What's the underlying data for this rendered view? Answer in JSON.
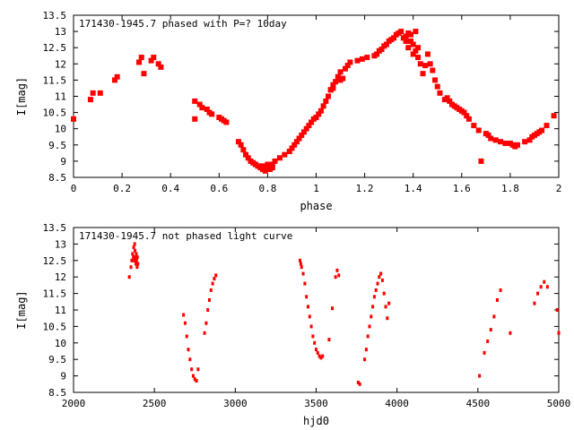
{
  "chart_data": [
    {
      "type": "scatter",
      "title": "171430-1945.7 phased with P=? 10day",
      "xlabel": "phase",
      "ylabel": "I[mag]",
      "xlim": [
        0,
        2
      ],
      "ylim": [
        13.5,
        8.5
      ],
      "y_inverted": true,
      "xticks": [
        0,
        0.2,
        0.4,
        0.6,
        0.8,
        1,
        1.2,
        1.4,
        1.6,
        1.8,
        2
      ],
      "xtick_labels": [
        "0",
        "0.2",
        "0.4",
        "0.6",
        "0.8",
        "1",
        "1.2",
        "1.4",
        "1.6",
        "1.8",
        "2"
      ],
      "yticks": [
        8.5,
        9,
        9.5,
        10,
        10.5,
        11,
        11.5,
        12,
        12.5,
        13,
        13.5
      ],
      "ytick_labels": [
        "8.5",
        "9",
        "9.5",
        "10",
        "10.5",
        "11",
        "11.5",
        "12",
        "12.5",
        "13",
        "13.5"
      ],
      "grid": false,
      "marker_color": "#ff0000",
      "series": [
        {
          "x": [
            0.0,
            0.07,
            0.08,
            0.11,
            0.17,
            0.18,
            0.27,
            0.28,
            0.29,
            0.32,
            0.33,
            0.35,
            0.36,
            0.5,
            0.5,
            0.52,
            0.53,
            0.55,
            0.56,
            0.57,
            0.6,
            0.61,
            0.62,
            0.63,
            0.68,
            0.69,
            0.7,
            0.71,
            0.72,
            0.73,
            0.74,
            0.75,
            0.76,
            0.77,
            0.78,
            0.78,
            0.79,
            0.79,
            0.8,
            0.8,
            0.81,
            0.81,
            0.82,
            0.82,
            0.83,
            0.85,
            0.87,
            0.89,
            0.9,
            0.91,
            0.92,
            0.93,
            0.94,
            0.95,
            0.96,
            0.97,
            0.98,
            0.99,
            1.0,
            1.01,
            1.02,
            1.03,
            1.04,
            1.05,
            1.06,
            1.07,
            1.08,
            1.09,
            1.1,
            1.12,
            1.13,
            1.14,
            1.17,
            1.19,
            1.21,
            1.24,
            1.25,
            1.26,
            1.27,
            1.28,
            1.29,
            1.3,
            1.31,
            1.32,
            1.33,
            1.34,
            1.35,
            1.36,
            1.37,
            1.37,
            1.38,
            1.38,
            1.39,
            1.39,
            1.4,
            1.4,
            1.41,
            1.41,
            1.42,
            1.42,
            1.43,
            1.44,
            1.45,
            1.46,
            1.47,
            1.48,
            1.49,
            1.5,
            1.51,
            1.53,
            1.54,
            1.55,
            1.56,
            1.57,
            1.58,
            1.59,
            1.6,
            1.61,
            1.62,
            1.63,
            1.65,
            1.67,
            1.68,
            1.7,
            1.71,
            1.72,
            1.74,
            1.76,
            1.78,
            1.8,
            1.81,
            1.82,
            1.83,
            1.86,
            1.88,
            1.89,
            1.9,
            1.91,
            1.92,
            1.93,
            1.95,
            1.98,
            1.06,
            1.07,
            1.1,
            1.11
          ],
          "y": [
            10.3,
            10.9,
            11.1,
            11.1,
            11.5,
            11.6,
            12.05,
            12.2,
            11.7,
            12.1,
            12.2,
            12.0,
            11.9,
            10.85,
            10.3,
            10.75,
            10.65,
            10.6,
            10.5,
            10.45,
            10.35,
            10.3,
            10.25,
            10.2,
            9.6,
            9.5,
            9.35,
            9.2,
            9.1,
            9.0,
            8.95,
            8.9,
            8.85,
            8.8,
            8.75,
            8.85,
            8.8,
            8.7,
            8.8,
            8.9,
            8.85,
            8.75,
            8.8,
            8.9,
            9.0,
            9.1,
            9.2,
            9.3,
            9.4,
            9.5,
            9.6,
            9.7,
            9.8,
            9.9,
            10.0,
            10.1,
            10.2,
            10.3,
            10.35,
            10.45,
            10.55,
            10.7,
            10.85,
            11.0,
            11.2,
            11.35,
            11.45,
            11.6,
            11.75,
            11.85,
            11.95,
            12.05,
            12.1,
            12.15,
            12.2,
            12.25,
            12.3,
            12.4,
            12.45,
            12.55,
            12.6,
            12.7,
            12.75,
            12.8,
            12.9,
            12.95,
            13.0,
            12.8,
            12.7,
            12.85,
            12.5,
            12.95,
            12.7,
            12.9,
            12.6,
            12.3,
            12.4,
            13.0,
            12.5,
            12.2,
            12.0,
            11.7,
            11.95,
            12.3,
            12.0,
            11.8,
            11.5,
            11.3,
            11.1,
            10.9,
            10.95,
            10.85,
            10.75,
            10.7,
            10.65,
            10.6,
            10.55,
            10.5,
            10.4,
            10.3,
            10.1,
            9.95,
            9.0,
            9.85,
            9.8,
            9.7,
            9.65,
            9.6,
            9.55,
            9.55,
            9.5,
            9.45,
            9.5,
            9.6,
            9.65,
            9.75,
            9.8,
            9.85,
            9.9,
            9.95,
            10.1,
            10.4,
            11.2,
            11.25,
            11.5,
            11.55
          ]
        }
      ]
    },
    {
      "type": "scatter",
      "title": "171430-1945.7 not phased light curve",
      "xlabel": "hjd0",
      "ylabel": "I[mag]",
      "xlim": [
        2000,
        5000
      ],
      "ylim": [
        13.5,
        8.5
      ],
      "y_inverted": true,
      "xticks": [
        2000,
        2500,
        3000,
        3500,
        4000,
        4500,
        5000
      ],
      "xtick_labels": [
        "2000",
        "2500",
        "3000",
        "3500",
        "4000",
        "4500",
        "5000"
      ],
      "yticks": [
        8.5,
        9,
        9.5,
        10,
        10.5,
        11,
        11.5,
        12,
        12.5,
        13,
        13.5
      ],
      "ytick_labels": [
        "8.5",
        "9",
        "9.5",
        "10",
        "10.5",
        "11",
        "11.5",
        "12",
        "12.5",
        "13",
        "13.5"
      ],
      "grid": false,
      "marker_color": "#ff0000",
      "series": [
        {
          "x": [
            2345,
            2355,
            2360,
            2365,
            2370,
            2372,
            2375,
            2378,
            2380,
            2383,
            2385,
            2388,
            2390,
            2393,
            2395,
            2398,
            2680,
            2690,
            2700,
            2710,
            2720,
            2730,
            2740,
            2750,
            2760,
            2770,
            2810,
            2820,
            2830,
            2840,
            2850,
            2860,
            2870,
            2880,
            3400,
            3405,
            3410,
            3420,
            3430,
            3440,
            3450,
            3460,
            3470,
            3480,
            3490,
            3500,
            3510,
            3520,
            3530,
            3540,
            3580,
            3600,
            3620,
            3630,
            3640,
            3760,
            3770,
            3800,
            3810,
            3820,
            3830,
            3840,
            3850,
            3860,
            3870,
            3880,
            3890,
            3900,
            3910,
            3920,
            3930,
            3940,
            3950,
            4510,
            4540,
            4560,
            4580,
            4600,
            4620,
            4640,
            4700,
            4850,
            4870,
            4890,
            4910,
            4930,
            4990,
            5000
          ],
          "y": [
            12.0,
            12.3,
            12.5,
            12.7,
            12.6,
            12.9,
            12.5,
            13.0,
            12.8,
            12.6,
            12.4,
            12.7,
            12.5,
            12.3,
            12.6,
            12.4,
            10.85,
            10.6,
            10.2,
            9.8,
            9.5,
            9.2,
            9.0,
            8.9,
            8.85,
            9.2,
            10.3,
            10.6,
            11.0,
            11.3,
            11.6,
            11.8,
            11.95,
            12.05,
            12.5,
            12.4,
            12.3,
            12.1,
            11.8,
            11.4,
            11.1,
            10.8,
            10.5,
            10.2,
            10.0,
            9.8,
            9.7,
            9.6,
            9.55,
            9.6,
            10.1,
            11.05,
            12.0,
            12.2,
            12.05,
            8.8,
            8.75,
            9.5,
            9.8,
            10.2,
            10.5,
            10.8,
            11.1,
            11.4,
            11.6,
            11.8,
            12.0,
            12.1,
            11.9,
            11.5,
            11.1,
            10.75,
            11.2,
            9.0,
            9.7,
            10.05,
            10.4,
            10.8,
            11.3,
            11.6,
            10.3,
            11.2,
            11.5,
            11.7,
            11.85,
            11.7,
            11.0,
            10.3
          ]
        }
      ]
    }
  ]
}
